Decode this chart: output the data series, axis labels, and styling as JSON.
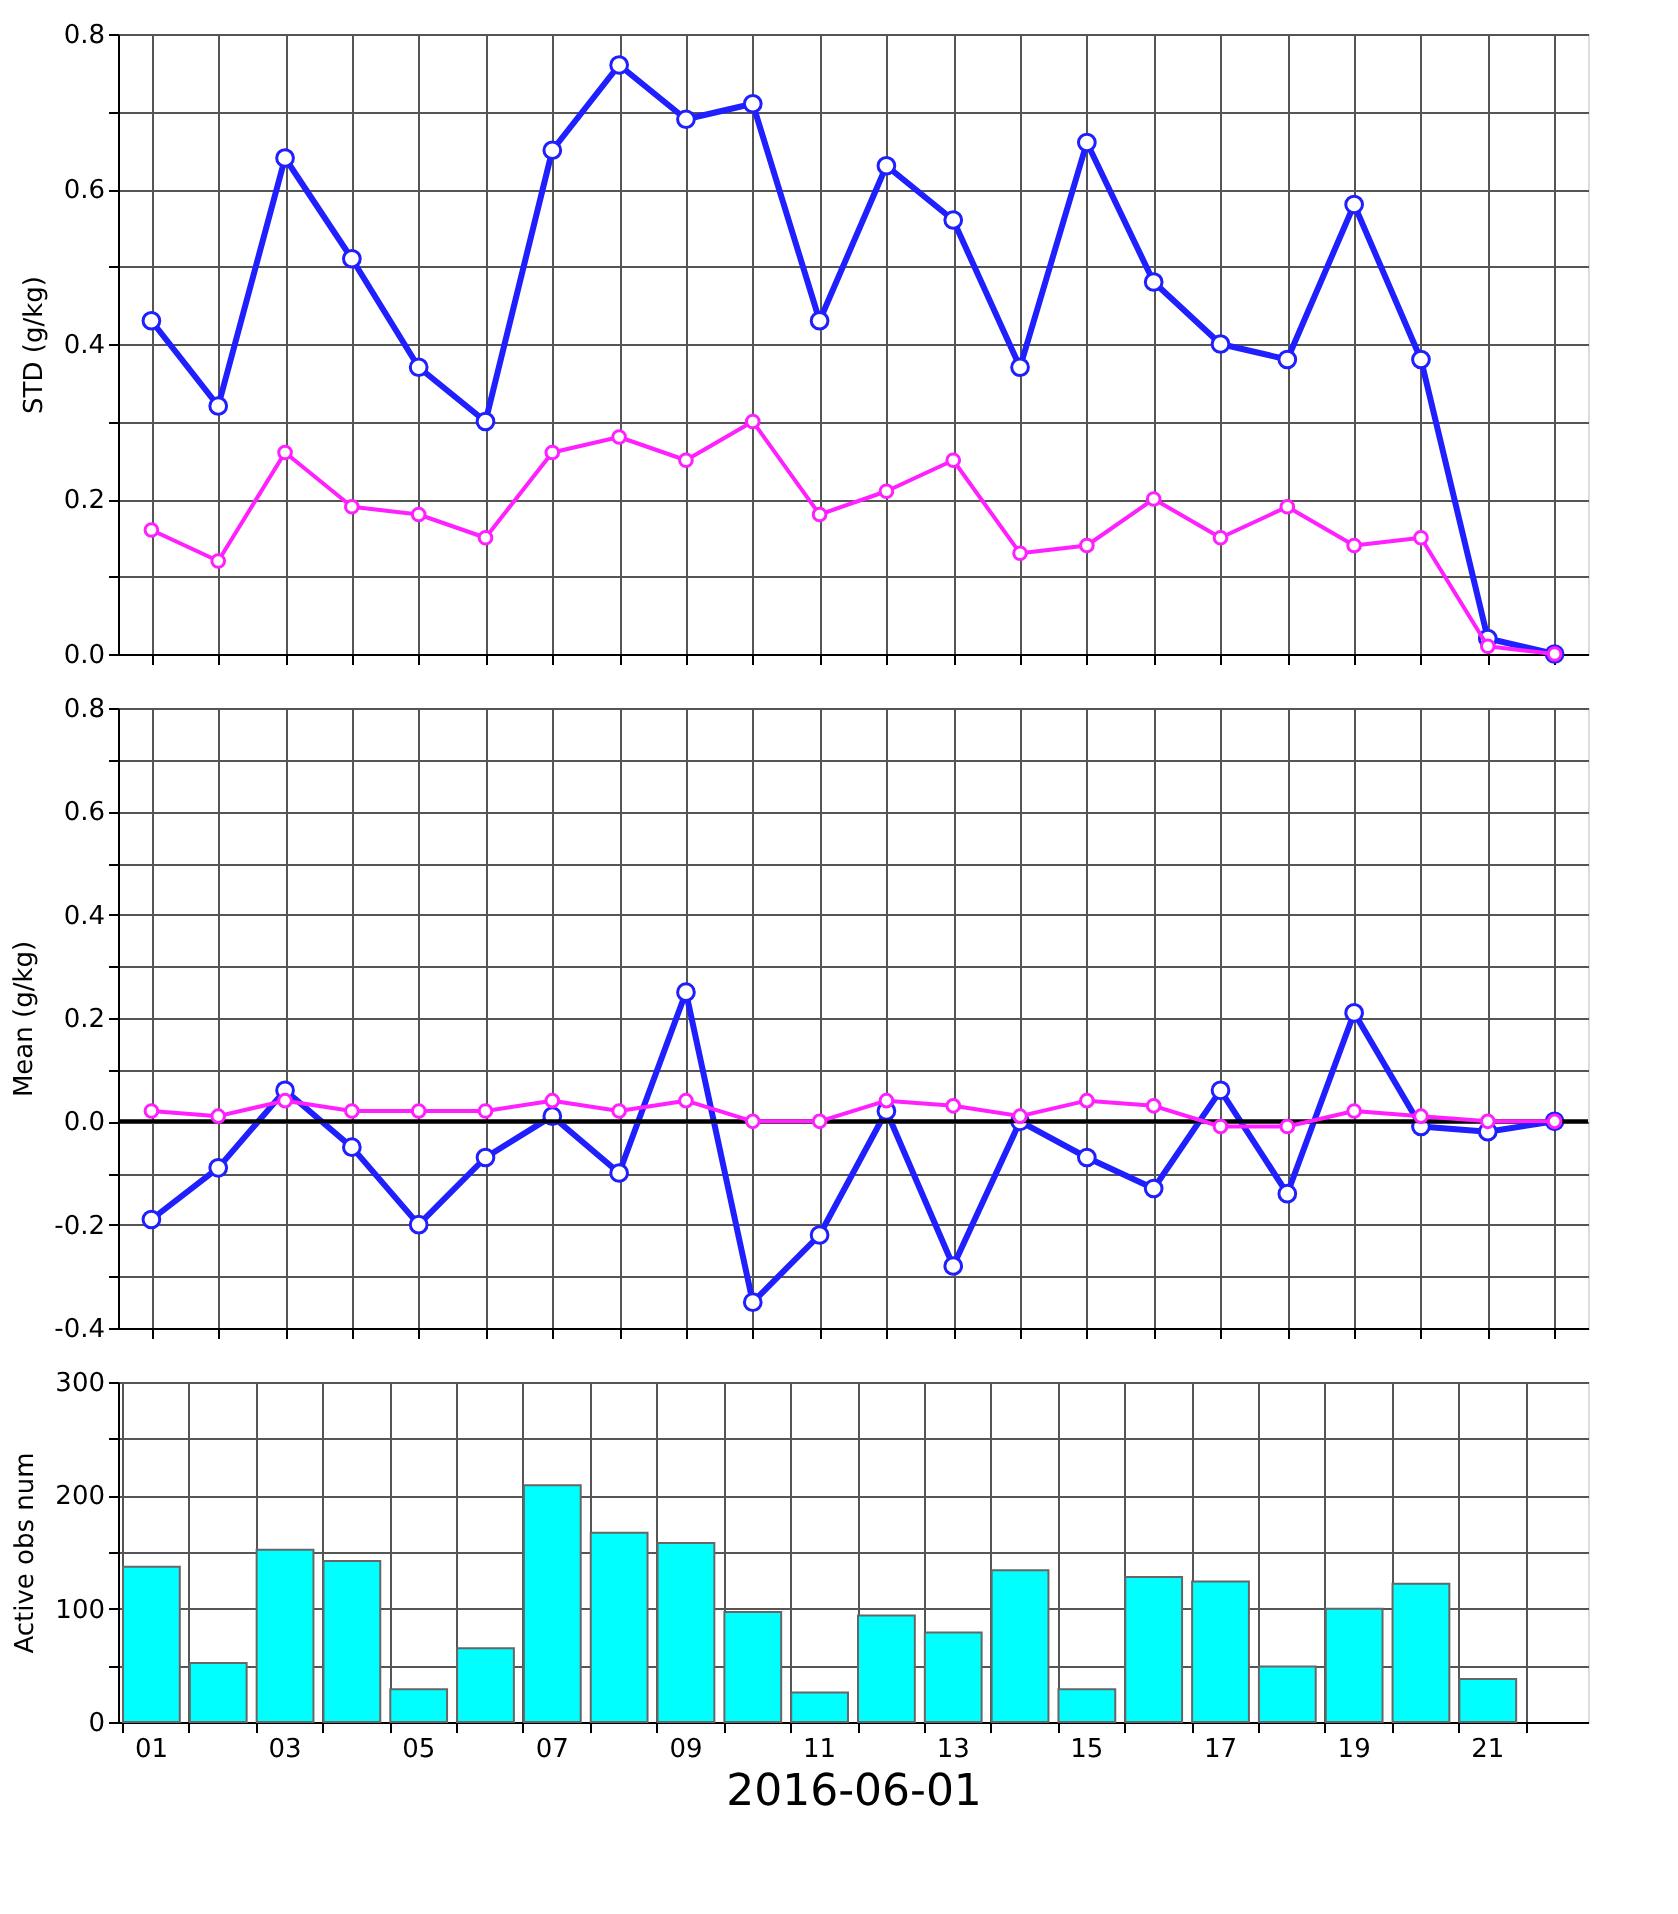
{
  "chart_data": [
    {
      "type": "line",
      "ylabel": "STD (g/kg)",
      "categories": [
        "01",
        null,
        "03",
        null,
        "05",
        null,
        "07",
        null,
        "09",
        null,
        "11",
        null,
        "13",
        null,
        "15",
        null,
        "17",
        null,
        "19",
        null,
        "21",
        null
      ],
      "marker": "circle",
      "grid": true,
      "tick_labels": "y",
      "ylim": [
        0,
        0.8
      ],
      "yticks": [
        {
          "value": 0,
          "label": "0.0"
        },
        {
          "value": 0.1,
          "label": null
        },
        0.2,
        {
          "value": 0.3,
          "label": null
        },
        0.4,
        {
          "value": 0.5,
          "label": null
        },
        0.6,
        {
          "value": 0.7,
          "label": null
        },
        0.8
      ],
      "series": [
        {
          "color": "#1f1fff",
          "values": [
            0.43,
            0.32,
            0.64,
            0.51,
            0.37,
            0.3,
            0.65,
            0.76,
            0.69,
            0.71,
            0.43,
            0.63,
            0.56,
            0.37,
            0.66,
            0.48,
            0.4,
            0.38,
            0.58,
            0.38,
            0.02,
            0.0
          ]
        },
        {
          "color": "#ff1fff",
          "values": [
            0.16,
            0.12,
            0.26,
            0.19,
            0.18,
            0.15,
            0.26,
            0.28,
            0.25,
            0.3,
            0.18,
            0.21,
            0.25,
            0.13,
            0.14,
            0.2,
            0.15,
            0.19,
            0.14,
            0.15,
            0.01,
            0.0
          ]
        }
      ]
    },
    {
      "type": "line",
      "ylabel": "Mean (g/kg)",
      "categories": [
        "01",
        null,
        "03",
        null,
        "05",
        null,
        "07",
        null,
        "09",
        null,
        "11",
        null,
        "13",
        null,
        "15",
        null,
        "17",
        null,
        "19",
        null,
        "21",
        null
      ],
      "marker": "circle",
      "grid": true,
      "tick_labels": "y",
      "ylim": [
        -0.4,
        0.8
      ],
      "yticks": [
        -0.4,
        {
          "value": -0.3,
          "label": null
        },
        -0.2,
        {
          "value": -0.1,
          "label": null
        },
        {
          "value": 0,
          "label": "0.0"
        },
        {
          "value": 0.1,
          "label": null
        },
        0.2,
        {
          "value": 0.3,
          "label": null
        },
        0.4,
        {
          "value": 0.5,
          "label": null
        },
        0.6,
        {
          "value": 0.7,
          "label": null
        },
        0.8
      ],
      "ref_lines": [
        {
          "axis": "y",
          "value": 0,
          "color": "#000000"
        }
      ],
      "series": [
        {
          "color": "#1f1fff",
          "values": [
            -0.19,
            -0.09,
            0.06,
            -0.05,
            -0.2,
            -0.07,
            0.01,
            -0.1,
            0.25,
            -0.35,
            -0.22,
            0.02,
            -0.28,
            0.0,
            -0.07,
            -0.13,
            0.06,
            -0.14,
            0.21,
            -0.01,
            -0.02,
            0.0
          ]
        },
        {
          "color": "#ff1fff",
          "values": [
            0.02,
            0.01,
            0.04,
            0.02,
            0.02,
            0.02,
            0.04,
            0.02,
            0.04,
            0.0,
            0.0,
            0.04,
            0.03,
            0.01,
            0.04,
            0.03,
            -0.01,
            -0.01,
            0.02,
            0.01,
            0.0,
            0.0
          ]
        }
      ]
    },
    {
      "type": "bar",
      "ylabel": "Active obs num",
      "xlabel": "2016-06-01",
      "categories": [
        "01",
        null,
        "03",
        null,
        "05",
        null,
        "07",
        null,
        "09",
        null,
        "11",
        null,
        "13",
        null,
        "15",
        null,
        "17",
        null,
        "19",
        null,
        "21",
        null
      ],
      "grid": true,
      "ylim": [
        0,
        300
      ],
      "yticks": [
        0,
        {
          "value": 50,
          "label": null
        },
        100,
        {
          "value": 150,
          "label": null
        },
        200,
        {
          "value": 250,
          "label": null
        },
        300
      ],
      "series": [
        {
          "color": "#00ffff",
          "values": [
            137,
            52,
            152,
            142,
            29,
            65,
            209,
            167,
            158,
            97,
            26,
            94,
            79,
            134,
            29,
            128,
            124,
            49,
            100,
            122,
            38,
            null
          ]
        }
      ]
    }
  ]
}
